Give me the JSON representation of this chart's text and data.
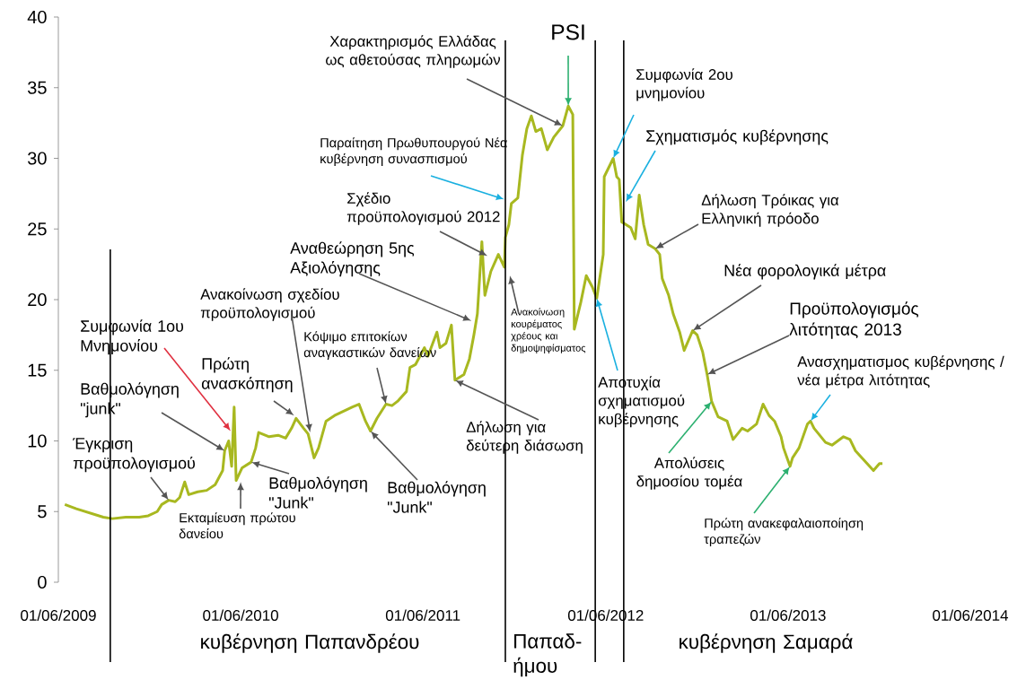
{
  "chart_data": {
    "type": "line",
    "x": [
      "2009-06-14",
      "2009-07-07",
      "2009-08-03",
      "2009-08-30",
      "2009-09-17",
      "2009-10-14",
      "2009-11-10",
      "2009-11-28",
      "2009-12-16",
      "2009-12-25",
      "2010-01-08",
      "2010-01-21",
      "2010-01-30",
      "2010-02-09",
      "2010-02-17",
      "2010-03-07",
      "2010-03-25",
      "2010-04-11",
      "2010-04-26",
      "2010-04-30",
      "2010-05-08",
      "2010-05-14",
      "2010-05-19",
      "2010-05-23",
      "2010-06-04",
      "2010-06-22",
      "2010-07-01",
      "2010-07-07",
      "2010-07-28",
      "2010-08-15",
      "2010-08-30",
      "2010-09-11",
      "2010-09-20",
      "2010-10-05",
      "2010-10-14",
      "2010-10-26",
      "2010-11-04",
      "2010-11-19",
      "2010-12-06",
      "2011-01-11",
      "2011-01-24",
      "2011-02-06",
      "2011-02-16",
      "2011-03-01",
      "2011-03-19",
      "2011-03-31",
      "2011-04-11",
      "2011-04-29",
      "2011-05-06",
      "2011-05-17",
      "2011-06-04",
      "2011-06-11",
      "2011-06-29",
      "2011-07-05",
      "2011-07-17",
      "2011-07-28",
      "2011-08-04",
      "2011-08-22",
      "2011-09-02",
      "2011-09-11",
      "2011-09-18",
      "2011-09-27",
      "2011-10-03",
      "2011-10-15",
      "2011-10-30",
      "2011-11-11",
      "2011-11-13",
      "2011-11-20",
      "2011-11-25",
      "2011-12-08",
      "2011-12-17",
      "2011-12-26",
      "2012-01-04",
      "2012-01-13",
      "2012-01-24",
      "2012-02-05",
      "2012-02-18",
      "2012-03-07",
      "2012-03-18",
      "2012-03-27",
      "2012-03-30",
      "2012-04-12",
      "2012-04-23",
      "2012-05-05",
      "2012-05-14",
      "2012-05-27",
      "2012-05-29",
      "2012-06-16",
      "2012-06-23",
      "2012-06-28",
      "2012-07-03",
      "2012-07-21",
      "2012-07-30",
      "2012-08-07",
      "2012-08-16",
      "2012-08-25",
      "2012-09-08",
      "2012-09-17",
      "2012-09-22",
      "2012-10-05",
      "2012-10-14",
      "2012-10-27",
      "2012-11-05",
      "2012-11-22",
      "2012-12-01",
      "2012-12-12",
      "2012-12-21",
      "2012-12-30",
      "2013-01-12",
      "2013-01-30",
      "2013-02-11",
      "2013-03-01",
      "2013-03-12",
      "2013-03-30",
      "2013-04-12",
      "2013-04-24",
      "2013-05-05",
      "2013-05-18",
      "2013-05-23",
      "2013-06-05",
      "2013-06-10",
      "2013-06-23",
      "2013-07-10",
      "2013-07-16",
      "2013-07-23",
      "2013-08-15",
      "2013-08-28",
      "2013-09-20",
      "2013-10-03",
      "2013-10-14",
      "2013-11-01",
      "2013-11-19",
      "2013-12-01",
      "2013-12-07"
    ],
    "series": [
      {
        "color": "#a8b820",
        "values": [
          5.5,
          5.2,
          4.9,
          4.6,
          4.5,
          4.6,
          4.6,
          4.7,
          5.0,
          5.5,
          5.8,
          5.7,
          6.0,
          7.1,
          6.2,
          6.4,
          6.5,
          6.9,
          7.9,
          9.3,
          10.0,
          8.2,
          12.4,
          7.2,
          8.1,
          8.5,
          9.5,
          10.6,
          10.3,
          10.4,
          10.2,
          10.9,
          11.6,
          10.9,
          10.5,
          8.8,
          9.5,
          11.4,
          11.8,
          12.4,
          12.6,
          11.4,
          10.7,
          11.6,
          12.6,
          12.5,
          12.8,
          13.5,
          15.2,
          15.4,
          16.6,
          16.0,
          17.7,
          16.6,
          16.9,
          18.2,
          14.3,
          14.7,
          15.8,
          17.5,
          19.0,
          24.1,
          20.3,
          22.0,
          23.2,
          22.3,
          24.4,
          25.3,
          26.8,
          27.2,
          30.2,
          32.1,
          33.0,
          31.9,
          32.1,
          30.6,
          31.5,
          32.3,
          33.7,
          33.1,
          17.9,
          19.8,
          21.7,
          20.9,
          20.1,
          23.2,
          28.7,
          30.0,
          28.7,
          28.5,
          25.5,
          25.1,
          24.3,
          27.4,
          25.3,
          23.9,
          23.6,
          23.2,
          21.5,
          20.3,
          19.0,
          17.7,
          16.4,
          17.8,
          17.5,
          16.3,
          14.7,
          12.8,
          11.7,
          11.4,
          10.1,
          10.9,
          10.7,
          11.2,
          12.6,
          11.8,
          11.4,
          10.3,
          9.5,
          8.2,
          8.8,
          9.5,
          11.2,
          11.4,
          10.9,
          9.9,
          9.7,
          10.3,
          10.1,
          9.3,
          8.6,
          7.9,
          8.4,
          8.4
        ]
      }
    ],
    "xlim": [
      "2009-06-01",
      "2014-06-01"
    ],
    "xticks": [
      {
        "value": "2009-06-01",
        "label": "01/06/2009"
      },
      {
        "value": "2010-06-01",
        "label": "01/06/2010"
      },
      {
        "value": "2011-06-01",
        "label": "01/06/2011"
      },
      {
        "value": "2012-06-01",
        "label": "01/06/2012"
      },
      {
        "value": "2013-06-01",
        "label": "01/06/2013"
      },
      {
        "value": "2014-06-01",
        "label": "01/06/2014"
      }
    ],
    "ylim": [
      0,
      40
    ],
    "yticks": [
      0,
      5,
      10,
      15,
      20,
      25,
      30,
      35,
      40
    ],
    "ref_lines": [
      {
        "axis": "x",
        "value": "2009-09-13",
        "color": "#000000"
      },
      {
        "axis": "x",
        "value": "2011-11-13",
        "color": "#000000"
      },
      {
        "axis": "x",
        "value": "2012-05-11",
        "color": "#000000"
      },
      {
        "axis": "x",
        "value": "2012-07-07",
        "color": "#000000"
      }
    ],
    "annotations": [
      {
        "text": "Συμφωνία 1ου Μνημονίου",
        "x": "2010-05-12",
        "y": 10.7
      },
      {
        "text": "Βαθμολόγηση \"junk\"",
        "x": "2010-04-30",
        "y": 9.3
      },
      {
        "text": "Έγκριση προϋπολογισμού",
        "x": "2010-01-08",
        "y": 5.8
      },
      {
        "text": "Εκταμίευση πρώτου δανείου",
        "x": "2010-06-01",
        "y": 7.1
      },
      {
        "text": "Πρώτη ανασκόπηση",
        "x": "2010-09-16",
        "y": 11.8
      },
      {
        "text": "Ανακοίνωση σχεδίου προϋπολογισμού",
        "x": "2010-10-18",
        "y": 10.6
      },
      {
        "text": "Βαθμολόγηση \"Junk\"",
        "x": "2010-06-22",
        "y": 8.5
      },
      {
        "text": "Κόψιμο επιτοκίων αναγκαστικών δανείων",
        "x": "2011-03-19",
        "y": 12.6
      },
      {
        "text": "Βαθμολόγηση \"Junk\"",
        "x": "2011-02-16",
        "y": 10.7
      },
      {
        "text": "Αναθεώρηση 5ης Αξιολόγησης",
        "x": "2011-09-06",
        "y": 18.5
      },
      {
        "text": "Σχέδιο προϋπολογισμού 2012",
        "x": "2011-10-08",
        "y": 23.1
      },
      {
        "text": "Παραίτηση Πρωθυπουργού Νέα κυβέρνηση συνασπισμού",
        "x": "2011-11-11",
        "y": 27.1
      },
      {
        "text": "Χαρακτηρισμός Ελλάδας ως αθετούσας πληρωμών",
        "x": "2012-03-07",
        "y": 32.3
      },
      {
        "text": "PSI",
        "x": "2012-03-18",
        "y": 33.7
      },
      {
        "text": "Ανακοίνωση κουρέματος χρέους και δημοψηφίσματος",
        "x": "2011-11-22",
        "y": 21.7
      },
      {
        "text": "Συμφωνία 2ου μνημονίου",
        "x": "2012-06-16",
        "y": 30.0
      },
      {
        "text": "Σχηματισμός κυβέρνησης",
        "x": "2012-07-11",
        "y": 26.9
      },
      {
        "text": "Αποτυχία σχηματισμού κυβέρνησης",
        "x": "2012-05-14",
        "y": 20.1
      },
      {
        "text": "Δήλωση Τρόικας για Ελληνική πρόοδο",
        "x": "2012-09-08",
        "y": 23.6
      },
      {
        "text": "Νέα φορολογικά μέτρα",
        "x": "2012-11-22",
        "y": 17.8
      },
      {
        "text": "Προϋπολογισμός λιτότητας 2013",
        "x": "2012-12-21",
        "y": 14.7
      },
      {
        "text": "Δήλωση για δεύτερη διάσωση",
        "x": "2011-08-04",
        "y": 14.3
      },
      {
        "text": "Απολύσεις δημοσίου τομέα",
        "x": "2012-12-30",
        "y": 12.8
      },
      {
        "text": "Πρώτη ανακεφαλαιοποίηση τραπεζών",
        "x": "2013-06-05",
        "y": 8.2
      },
      {
        "text": "Ανασχηματισμος κυβέρνησης / νέα μέτρα λιτότητας",
        "x": "2013-07-16",
        "y": 11.4
      },
      "κυβέρνηση Παπανδρέου",
      "Παπαδ-ήμου",
      "κυβέρνηση Σαμαρά"
    ]
  }
}
